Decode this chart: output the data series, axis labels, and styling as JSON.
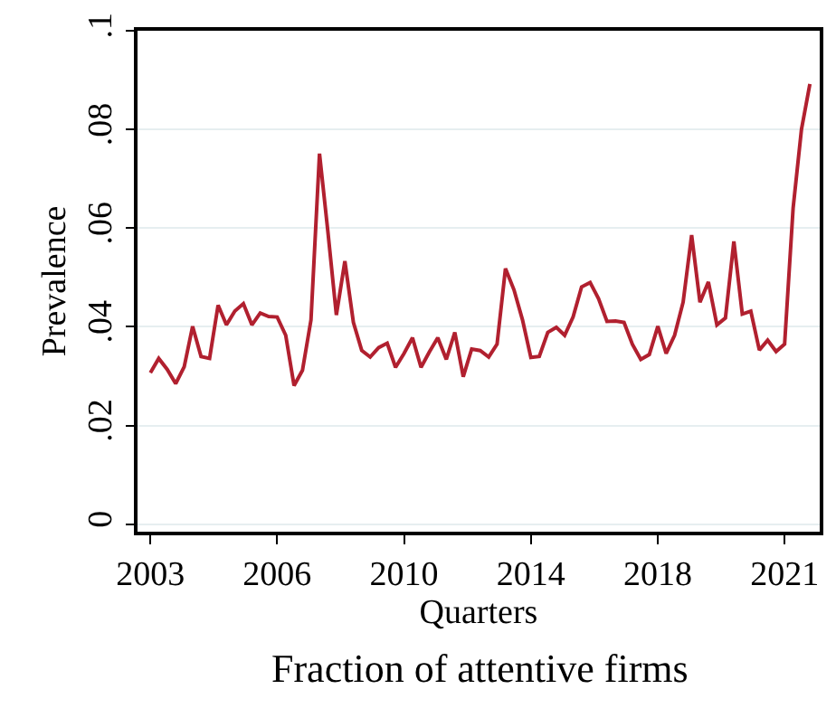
{
  "chart_data": {
    "type": "line",
    "title": "Fraction of attentive firms",
    "xlabel": "Quarters",
    "ylabel": "Prevalence",
    "x": [
      "2003-01",
      "2003-04",
      "2003-07",
      "2003-10",
      "2004-01",
      "2004-04",
      "2004-07",
      "2004-10",
      "2005-01",
      "2005-04",
      "2005-07",
      "2005-10",
      "2006-01",
      "2006-04",
      "2006-07",
      "2006-10",
      "2007-01",
      "2007-04",
      "2007-07",
      "2007-10",
      "2008-01",
      "2008-04",
      "2008-07",
      "2008-10",
      "2009-01",
      "2009-04",
      "2009-07",
      "2009-10",
      "2010-01",
      "2010-04",
      "2010-07",
      "2010-10",
      "2011-01",
      "2011-04",
      "2011-07",
      "2011-10",
      "2012-01",
      "2012-04",
      "2012-07",
      "2012-10",
      "2013-01",
      "2013-04",
      "2013-07",
      "2013-10",
      "2014-01",
      "2014-04",
      "2014-07",
      "2014-10",
      "2015-01",
      "2015-04",
      "2015-07",
      "2015-10",
      "2016-01",
      "2016-04",
      "2016-07",
      "2016-10",
      "2017-01",
      "2017-04",
      "2017-07",
      "2017-10",
      "2018-01",
      "2018-04",
      "2018-07",
      "2018-10",
      "2019-01",
      "2019-04",
      "2019-07",
      "2019-10",
      "2020-01",
      "2020-04",
      "2020-07",
      "2020-10",
      "2021-01",
      "2021-04",
      "2021-07",
      "2021-10",
      "2022-01",
      "2022-04",
      "2022-07"
    ],
    "series": [
      {
        "color": "#b1202f",
        "values": [
          0.0307,
          0.0336,
          0.0314,
          0.0285,
          0.0319,
          0.0401,
          0.034,
          0.0336,
          0.0444,
          0.0404,
          0.0432,
          0.0447,
          0.0404,
          0.0428,
          0.0421,
          0.042,
          0.0383,
          0.0281,
          0.0312,
          0.0414,
          0.0751,
          0.0592,
          0.0424,
          0.0533,
          0.0409,
          0.0352,
          0.0339,
          0.0358,
          0.0367,
          0.0318,
          0.0346,
          0.0378,
          0.0318,
          0.0349,
          0.0378,
          0.0334,
          0.0389,
          0.0299,
          0.0355,
          0.0352,
          0.0339,
          0.0365,
          0.0518,
          0.0475,
          0.0414,
          0.0338,
          0.034,
          0.0389,
          0.0399,
          0.0383,
          0.042,
          0.0481,
          0.049,
          0.0457,
          0.0411,
          0.0412,
          0.0409,
          0.0365,
          0.0334,
          0.0344,
          0.0401,
          0.0346,
          0.0383,
          0.045,
          0.0586,
          0.045,
          0.0491,
          0.0404,
          0.0418,
          0.0573,
          0.0426,
          0.0432,
          0.0353,
          0.0373,
          0.035,
          0.0365,
          0.0641,
          0.08,
          0.0892
        ]
      }
    ],
    "xlim": [
      "2002-08-15",
      "2022-10-15"
    ],
    "xticks": [
      {
        "value": "2003-01",
        "label": "2003"
      },
      {
        "value": "2006-10",
        "label": "2006"
      },
      {
        "value": "2010-07",
        "label": "2010"
      },
      {
        "value": "2014-04",
        "label": "2014"
      },
      {
        "value": "2018-01",
        "label": "2018"
      },
      {
        "value": "2021-10",
        "label": "2021"
      }
    ],
    "ylim": [
      -0.0015,
      0.1
    ],
    "yticks": [
      {
        "value": 0,
        "label": "0"
      },
      {
        "value": 0.02,
        "label": ".02"
      },
      {
        "value": 0.04,
        "label": ".04"
      },
      {
        "value": 0.06,
        "label": ".06"
      },
      {
        "value": 0.08,
        "label": ".08"
      },
      {
        "value": 0.1,
        "label": ".1"
      }
    ],
    "grid": "y",
    "marker": "none",
    "line_style": "solid"
  }
}
